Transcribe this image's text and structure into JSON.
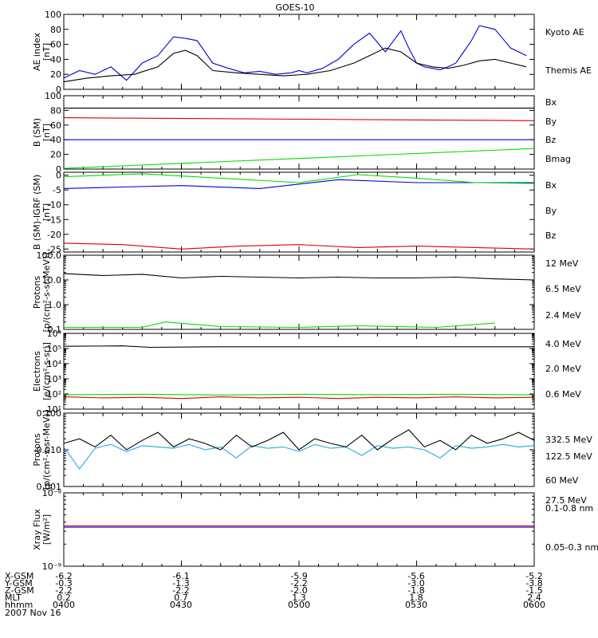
{
  "title": "GOES-10",
  "colors": {
    "black": "#000000",
    "blue": "#0000dd",
    "green": "#00dd00",
    "red": "#dd0000",
    "yellow": "#ffd700",
    "cyan": "#22aadd"
  },
  "chart_data": [
    {
      "type": "line",
      "panel": "ae_index",
      "ylabel": [
        "AE index",
        "[nT]"
      ],
      "ylim": [
        0,
        100
      ],
      "ticks": [
        0,
        20,
        40,
        60,
        80,
        100
      ],
      "tick_labels": [
        "0",
        "20",
        "40",
        "60",
        "80",
        "100"
      ],
      "series": [
        {
          "name": "Kyoto AE",
          "color": "blue",
          "x": [
            0,
            4,
            8,
            12,
            16,
            20,
            24,
            28,
            31,
            34,
            38,
            42,
            46,
            50,
            54,
            58,
            60,
            62,
            66,
            70,
            74,
            78,
            82,
            86,
            88,
            90,
            92,
            94,
            96,
            98,
            100,
            102,
            104,
            106,
            110,
            114,
            118
          ],
          "values": [
            15,
            25,
            20,
            30,
            12,
            35,
            45,
            70,
            68,
            65,
            35,
            28,
            22,
            24,
            20,
            22,
            25,
            22,
            28,
            40,
            60,
            75,
            50,
            78,
            55,
            35,
            30,
            28,
            26,
            30,
            35,
            50,
            65,
            85,
            80,
            55,
            45
          ]
        },
        {
          "name": "Themis AE",
          "color": "black",
          "x": [
            0,
            6,
            12,
            18,
            24,
            28,
            31,
            34,
            38,
            44,
            50,
            56,
            62,
            68,
            74,
            78,
            82,
            86,
            90,
            94,
            98,
            102,
            106,
            110,
            114,
            118
          ],
          "values": [
            10,
            15,
            18,
            20,
            30,
            48,
            52,
            45,
            25,
            22,
            20,
            18,
            20,
            25,
            35,
            45,
            55,
            50,
            35,
            30,
            28,
            32,
            38,
            40,
            35,
            30
          ]
        }
      ]
    },
    {
      "type": "line",
      "panel": "b_field",
      "ylabel": [
        "B (SM)",
        "[nT]"
      ],
      "ylim": [
        0,
        100
      ],
      "ticks": [
        0,
        20,
        40,
        60,
        80,
        100
      ],
      "tick_labels": [
        "0",
        "20",
        "40",
        "60",
        "80",
        "100"
      ],
      "series": [
        {
          "name": "Bx",
          "color": "blue",
          "x": [
            0,
            120
          ],
          "values": [
            40,
            40
          ]
        },
        {
          "name": "By",
          "color": "green",
          "x": [
            0,
            120
          ],
          "values": [
            1,
            28
          ]
        },
        {
          "name": "Bz",
          "color": "red",
          "x": [
            0,
            120
          ],
          "values": [
            70,
            66
          ]
        },
        {
          "name": "Bmag",
          "color": "black",
          "x": [
            0,
            120
          ],
          "values": [
            83,
            83
          ]
        }
      ]
    },
    {
      "type": "line",
      "panel": "b_minus_igrf",
      "ylabel": [
        "B (SM)-IGRF (SM)",
        "[nT]"
      ],
      "ylim": [
        -26,
        1
      ],
      "ticks": [
        -25,
        -20,
        -15,
        -10,
        -5,
        0
      ],
      "tick_labels": [
        "-25",
        "-20",
        "-15",
        "-10",
        "-5",
        "0"
      ],
      "series": [
        {
          "name": "Bx",
          "color": "blue",
          "x": [
            0,
            15,
            30,
            50,
            70,
            90,
            110,
            120
          ],
          "values": [
            -4.5,
            -4,
            -3.5,
            -4.5,
            -1.5,
            -2.5,
            -2.5,
            -2.5
          ]
        },
        {
          "name": "By",
          "color": "green",
          "x": [
            0,
            20,
            40,
            60,
            75,
            90,
            105,
            120
          ],
          "values": [
            -0.5,
            0.5,
            -1,
            -2.5,
            0.2,
            -1,
            -2.5,
            -2.8
          ]
        },
        {
          "name": "Bz",
          "color": "red",
          "x": [
            0,
            15,
            30,
            45,
            60,
            75,
            90,
            105,
            120
          ],
          "values": [
            -23,
            -23.5,
            -25,
            -24,
            -23.5,
            -24.5,
            -24,
            -24.5,
            -25
          ]
        }
      ]
    },
    {
      "type": "line",
      "panel": "protons_low",
      "ylabel": [
        "Protons",
        "[p/(cm²-s-sr-MeV)]"
      ],
      "yscale": "log",
      "ylim": [
        0.1,
        100
      ],
      "ticks": [
        0.1,
        1,
        10,
        100
      ],
      "tick_labels": [
        "0.1",
        "1.0",
        "10.0",
        "100.0"
      ],
      "series": [
        {
          "name": "12 MeV",
          "color": "red",
          "x": [],
          "values": []
        },
        {
          "name": "6.5 MeV",
          "color": "green",
          "x": [
            0,
            20,
            26,
            40,
            60,
            75,
            95,
            110
          ],
          "values": [
            0.12,
            0.12,
            0.2,
            0.13,
            0.12,
            0.14,
            0.12,
            0.18
          ]
        },
        {
          "name": "2.4 MeV",
          "color": "black",
          "x": [
            0,
            10,
            20,
            30,
            40,
            50,
            60,
            70,
            80,
            90,
            100,
            110,
            120
          ],
          "values": [
            18,
            15,
            17,
            12,
            14,
            13,
            12,
            13,
            12,
            12,
            13,
            11,
            10
          ]
        }
      ]
    },
    {
      "type": "line",
      "panel": "electrons",
      "ylabel": [
        "Electrons",
        "[e/(cm²-s-sr)]"
      ],
      "yscale": "log",
      "ylim": [
        10,
        1000000
      ],
      "ticks": [
        10,
        100,
        1000,
        10000,
        100000,
        1000000
      ],
      "tick_labels": [
        "10¹",
        "10²",
        "10³",
        "10⁴",
        "10⁵",
        "10⁶"
      ],
      "series": [
        {
          "name": "4.0 MeV",
          "color": "red",
          "x": [
            0,
            10,
            20,
            30,
            40,
            50,
            60,
            70,
            80,
            90,
            100,
            110,
            120
          ],
          "values": [
            65,
            55,
            60,
            50,
            65,
            55,
            60,
            50,
            60,
            55,
            65,
            55,
            60
          ]
        },
        {
          "name": "2.0 MeV",
          "color": "green",
          "x": [
            0,
            20,
            40,
            60,
            80,
            100,
            120
          ],
          "values": [
            90,
            95,
            85,
            95,
            90,
            95,
            88
          ]
        },
        {
          "name": "0.6 MeV",
          "color": "black",
          "x": [
            0,
            15,
            22,
            40,
            60,
            80,
            100,
            120
          ],
          "values": [
            140000,
            150000,
            120000,
            130000,
            130000,
            130000,
            130000,
            130000
          ]
        }
      ]
    },
    {
      "type": "line",
      "panel": "protons_high",
      "ylabel": [
        "Protons",
        "[p/(cm²-s-sr-MeV)]"
      ],
      "yscale": "log",
      "ylim": [
        0.001,
        0.1
      ],
      "ticks": [
        0.001,
        0.01,
        0.1
      ],
      "tick_labels": [
        "0.001",
        "0.010",
        "0.100"
      ],
      "series": [
        {
          "name": "332.5 MeV",
          "color": "red",
          "x": [],
          "values": []
        },
        {
          "name": "122.5 MeV",
          "color": "yellow",
          "x": [],
          "values": []
        },
        {
          "name": "60 MeV",
          "color": "cyan",
          "x": [
            0,
            4,
            8,
            12,
            16,
            20,
            24,
            28,
            32,
            36,
            40,
            44,
            48,
            52,
            56,
            60,
            64,
            68,
            72,
            76,
            80,
            84,
            88,
            92,
            96,
            100,
            104,
            108,
            112,
            116,
            120
          ],
          "values": [
            0.012,
            0.003,
            0.011,
            0.014,
            0.009,
            0.013,
            0.012,
            0.011,
            0.014,
            0.01,
            0.012,
            0.006,
            0.013,
            0.011,
            0.012,
            0.009,
            0.014,
            0.011,
            0.012,
            0.007,
            0.013,
            0.011,
            0.012,
            0.01,
            0.006,
            0.013,
            0.011,
            0.012,
            0.014,
            0.012,
            0.013
          ]
        },
        {
          "name": "27.5 MeV",
          "color": "black",
          "x": [
            0,
            4,
            8,
            12,
            16,
            20,
            24,
            28,
            32,
            36,
            40,
            44,
            48,
            52,
            56,
            60,
            64,
            68,
            72,
            76,
            80,
            84,
            88,
            92,
            96,
            100,
            104,
            108,
            112,
            116,
            120
          ],
          "values": [
            0.015,
            0.02,
            0.012,
            0.025,
            0.01,
            0.018,
            0.03,
            0.012,
            0.02,
            0.015,
            0.01,
            0.025,
            0.012,
            0.018,
            0.03,
            0.01,
            0.02,
            0.015,
            0.012,
            0.025,
            0.01,
            0.02,
            0.035,
            0.012,
            0.018,
            0.01,
            0.025,
            0.015,
            0.02,
            0.03,
            0.018
          ]
        }
      ]
    },
    {
      "type": "line",
      "panel": "xray",
      "ylabel": [
        "Xray Flux",
        "[W/m²]"
      ],
      "yscale": "log",
      "ylim": [
        1e-09,
        1e-08
      ],
      "ticks": [
        1e-09,
        1e-08
      ],
      "tick_labels": [
        "10⁻⁹",
        "10⁻⁸"
      ],
      "series": [
        {
          "name": "0.1-0.8 nm",
          "color": "red",
          "x": [
            0,
            120
          ],
          "values": [
            3.55e-09,
            3.55e-09
          ]
        },
        {
          "name": "0.05-0.3 nm",
          "color": "blue",
          "x": [
            0,
            120
          ],
          "values": [
            3.4e-09,
            3.4e-09
          ]
        }
      ]
    }
  ],
  "x_axis": {
    "units": "minutes after 0400 UT",
    "xlim": [
      0,
      120
    ],
    "major_ticks": [
      0,
      30,
      60,
      90,
      120
    ],
    "row_labels": [
      "X-GSM",
      "Y-GSM",
      "Z-GSM",
      "MLT",
      "hhmm"
    ],
    "columns": [
      [
        "-6.2",
        "-0.3",
        "-2.2",
        "0.2",
        "0400"
      ],
      [
        "-6.1",
        "-1.3",
        "-2.2",
        "0.7",
        "0430"
      ],
      [
        "-5.9",
        "-2.2",
        "-2.0",
        "1.3",
        "0500"
      ],
      [
        "-5.6",
        "-3.0",
        "-1.8",
        "1.8",
        "0530"
      ],
      [
        "-5.2",
        "-3.8",
        "-1.5",
        "2.4",
        "0600"
      ]
    ],
    "date": "2007 Nov 16"
  }
}
